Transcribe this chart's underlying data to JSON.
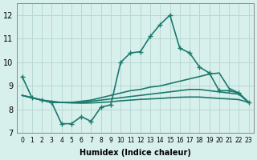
{
  "xlabel": "Humidex (Indice chaleur)",
  "ylabel": "",
  "background_color": "#d8f0ec",
  "grid_color": "#b8d8d4",
  "line_color": "#1a7a6e",
  "xlim": [
    -0.5,
    23.5
  ],
  "ylim": [
    7,
    12.5
  ],
  "yticks": [
    7,
    8,
    9,
    10,
    11,
    12
  ],
  "xtick_labels": [
    "0",
    "1",
    "2",
    "3",
    "4",
    "5",
    "6",
    "7",
    "8",
    "9",
    "10",
    "11",
    "12",
    "13",
    "14",
    "15",
    "16",
    "17",
    "18",
    "19",
    "20",
    "21",
    "22",
    "23"
  ],
  "series1_x": [
    0,
    1,
    2,
    3,
    4,
    5,
    6,
    7,
    8,
    9,
    10,
    11,
    12,
    13,
    14,
    15,
    16,
    17,
    18,
    19,
    20,
    21,
    22,
    23
  ],
  "series1_y": [
    9.4,
    8.5,
    8.4,
    8.3,
    7.4,
    7.4,
    7.7,
    7.5,
    8.1,
    8.2,
    10.0,
    10.4,
    10.45,
    11.1,
    11.6,
    12.0,
    10.6,
    10.4,
    9.8,
    9.55,
    8.8,
    8.8,
    8.7,
    8.3
  ],
  "series2_x": [
    0,
    1,
    2,
    3,
    4,
    5,
    6,
    7,
    8,
    9,
    10,
    11,
    12,
    13,
    14,
    15,
    16,
    17,
    18,
    19,
    20,
    21,
    22,
    23
  ],
  "series2_y": [
    8.6,
    8.5,
    8.4,
    8.3,
    8.3,
    8.3,
    8.35,
    8.4,
    8.5,
    8.6,
    8.7,
    8.8,
    8.85,
    8.95,
    9.0,
    9.1,
    9.2,
    9.3,
    9.4,
    9.5,
    9.55,
    8.9,
    8.7,
    8.3
  ],
  "series3_x": [
    0,
    1,
    2,
    3,
    4,
    5,
    6,
    7,
    8,
    9,
    10,
    11,
    12,
    13,
    14,
    15,
    16,
    17,
    18,
    19,
    20,
    21,
    22,
    23
  ],
  "series3_y": [
    8.6,
    8.5,
    8.4,
    8.3,
    8.3,
    8.3,
    8.3,
    8.35,
    8.4,
    8.45,
    8.5,
    8.55,
    8.6,
    8.65,
    8.7,
    8.75,
    8.8,
    8.85,
    8.85,
    8.8,
    8.75,
    8.7,
    8.65,
    8.3
  ],
  "series4_x": [
    0,
    1,
    2,
    3,
    4,
    5,
    6,
    7,
    8,
    9,
    10,
    11,
    12,
    13,
    14,
    15,
    16,
    17,
    18,
    19,
    20,
    21,
    22,
    23
  ],
  "series4_y": [
    8.6,
    8.5,
    8.4,
    8.35,
    8.3,
    8.28,
    8.27,
    8.28,
    8.3,
    8.33,
    8.37,
    8.4,
    8.43,
    8.45,
    8.47,
    8.5,
    8.52,
    8.53,
    8.53,
    8.5,
    8.47,
    8.45,
    8.42,
    8.3
  ],
  "marker": "+",
  "marker_size": 4,
  "linewidth": 1.2
}
